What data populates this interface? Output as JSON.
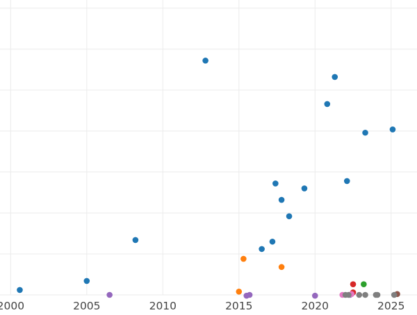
{
  "chart_data": {
    "type": "scatter",
    "title": "",
    "xlabel": "",
    "ylabel": "",
    "xlim": [
      1999.3,
      2026.7
    ],
    "ylim": [
      0,
      36
    ],
    "x_ticks": [
      2000,
      2005,
      2010,
      2015,
      2020,
      2025
    ],
    "x_tick_labels": [
      "2000",
      "2005",
      "2010",
      "2015",
      "2020",
      "2025"
    ],
    "y_gridlines": [
      0,
      5,
      10,
      15,
      20,
      25,
      30,
      35
    ],
    "grid": true,
    "legend": "none",
    "series": [
      {
        "color": "#1f77b4",
        "points": [
          [
            2000.6,
            0.6
          ],
          [
            2005.0,
            1.7
          ],
          [
            2008.2,
            6.7
          ],
          [
            2012.8,
            28.6
          ],
          [
            2016.5,
            5.6
          ],
          [
            2017.2,
            6.5
          ],
          [
            2017.4,
            13.6
          ],
          [
            2017.8,
            11.6
          ],
          [
            2018.3,
            9.6
          ],
          [
            2019.3,
            13.0
          ],
          [
            2020.8,
            23.3
          ],
          [
            2021.3,
            26.6
          ],
          [
            2022.1,
            13.9
          ],
          [
            2023.3,
            19.8
          ],
          [
            2025.1,
            20.2
          ]
        ]
      },
      {
        "color": "#ff7f0e",
        "points": [
          [
            2015.0,
            0.4
          ],
          [
            2015.3,
            4.4
          ],
          [
            2017.8,
            3.4
          ]
        ]
      },
      {
        "color": "#2ca02c",
        "points": [
          [
            2023.2,
            1.3
          ]
        ]
      },
      {
        "color": "#d62728",
        "points": [
          [
            2022.5,
            1.3
          ],
          [
            2022.5,
            0.3
          ]
        ]
      },
      {
        "color": "#9467bd",
        "points": [
          [
            2006.5,
            0.0
          ],
          [
            2015.5,
            -0.1
          ],
          [
            2015.7,
            0.0
          ],
          [
            2020.0,
            -0.1
          ],
          [
            2022.3,
            0.0
          ]
        ]
      },
      {
        "color": "#8c564b",
        "points": [
          [
            2025.4,
            0.1
          ]
        ]
      },
      {
        "color": "#e377c2",
        "points": [
          [
            2021.8,
            0.0
          ],
          [
            2022.4,
            0.1
          ]
        ]
      },
      {
        "color": "#7f7f7f",
        "points": [
          [
            2022.0,
            0.0
          ],
          [
            2022.2,
            0.0
          ],
          [
            2022.9,
            0.0
          ],
          [
            2023.3,
            0.0
          ],
          [
            2024.0,
            0.0
          ],
          [
            2024.1,
            0.0
          ],
          [
            2025.2,
            0.0
          ]
        ]
      }
    ]
  }
}
